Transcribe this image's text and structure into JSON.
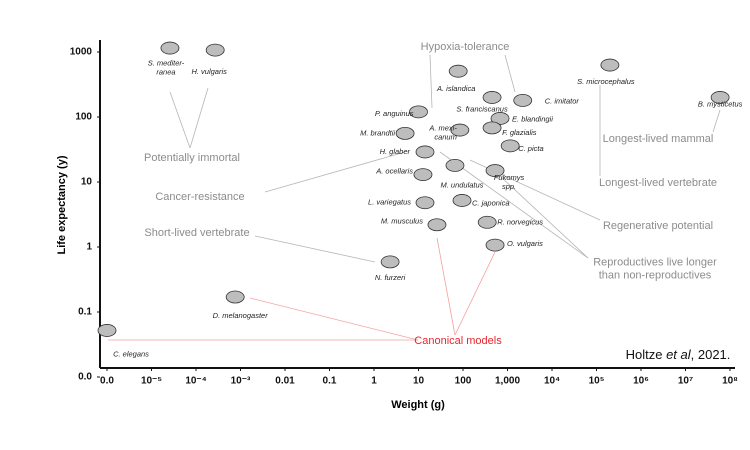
{
  "chart_data": {
    "type": "scatter",
    "x_label": "Weight (g)",
    "y_label": "Life expectancy (y)",
    "xscale": "log",
    "yscale": "log",
    "xlim": [
      1e-06,
      100000000
    ],
    "xticks": [
      {
        "value": 1e-06,
        "label": "0.0"
      },
      {
        "value": 1e-05,
        "label": "10⁻⁵"
      },
      {
        "value": 0.0001,
        "label": "10⁻⁴"
      },
      {
        "value": 0.001,
        "label": "10⁻³"
      },
      0.01,
      0.1,
      1,
      10,
      100,
      {
        "value": 1000,
        "label": "1,000"
      },
      {
        "value": 10000,
        "label": "10⁴"
      },
      {
        "value": 100000,
        "label": "10⁵"
      },
      {
        "value": 1000000,
        "label": "10⁶"
      },
      {
        "value": 10000000,
        "label": "10⁷"
      },
      {
        "value": 100000000,
        "label": "10⁸"
      }
    ],
    "ylim": [
      0.01,
      1000
    ],
    "yticks": [
      {
        "value": 0.01,
        "label": "0.0"
      },
      0.1,
      1,
      10,
      100,
      1000
    ],
    "color": "#8a8a8a",
    "points": [
      {
        "name": [
          "S. mediter-",
          "ranea"
        ],
        "x": 2.6e-05,
        "y": 1150
      },
      {
        "name": "H. vulgaris",
        "x": 0.00027,
        "y": 1070
      },
      {
        "name": "A. islandica",
        "x": 78,
        "y": 507
      },
      {
        "name": "S. franciscanus",
        "x": 450,
        "y": 200
      },
      {
        "name": "C. imitator",
        "x": 2200,
        "y": 180
      },
      {
        "name": "S. microcephalus",
        "x": 200000,
        "y": 630
      },
      {
        "name": "B. mysticetus",
        "x": 60000000,
        "y": 200
      },
      {
        "name": "P. anguinus",
        "x": 10,
        "y": 120
      },
      {
        "name": "M. brandtii",
        "x": 5,
        "y": 56
      },
      {
        "name": "E. blandingii",
        "x": 680,
        "y": 95
      },
      {
        "name": [
          "A. mexi-",
          "canum"
        ],
        "x": 85,
        "y": 63
      },
      {
        "name": "F. glazialis",
        "x": 450,
        "y": 68
      },
      {
        "name": "C. picta",
        "x": 1150,
        "y": 36
      },
      {
        "name": "H. glaber",
        "x": 14,
        "y": 29
      },
      {
        "name": "A. ocellaris",
        "x": 12.6,
        "y": 13
      },
      {
        "name": "M. undulatus",
        "x": 66,
        "y": 18
      },
      {
        "name": [
          "Fukomys",
          "spp."
        ],
        "x": 525,
        "y": 15
      },
      {
        "name": "L. variegatus",
        "x": 14,
        "y": 4.8
      },
      {
        "name": "C. japonica",
        "x": 95,
        "y": 5.2
      },
      {
        "name": "M. musculus",
        "x": 26,
        "y": 2.2
      },
      {
        "name": "R. norvegicus",
        "x": 350,
        "y": 2.4
      },
      {
        "name": "O. vulgaris",
        "x": 525,
        "y": 1.07
      },
      {
        "name": "N. furzeri",
        "x": 2.3,
        "y": 0.59
      },
      {
        "name": "D. melanogaster",
        "x": 0.00076,
        "y": 0.17
      },
      {
        "name": "C. elegans",
        "x": 1e-06,
        "y": 0.052
      }
    ],
    "annotations": [
      "Hypoxia-tolerance",
      "Potentially immortal",
      "Cancer-resistance",
      "Short-lived vertebrate",
      "Longest-lived mammal",
      "Longest-lived vertebrate",
      "Regenerative potential",
      [
        "Reproductives live longer",
        "than non-reproductives"
      ],
      "Canonical models"
    ],
    "citation": {
      "author": "Holtze ",
      "etal": "et al",
      "year": ", 2021."
    }
  }
}
